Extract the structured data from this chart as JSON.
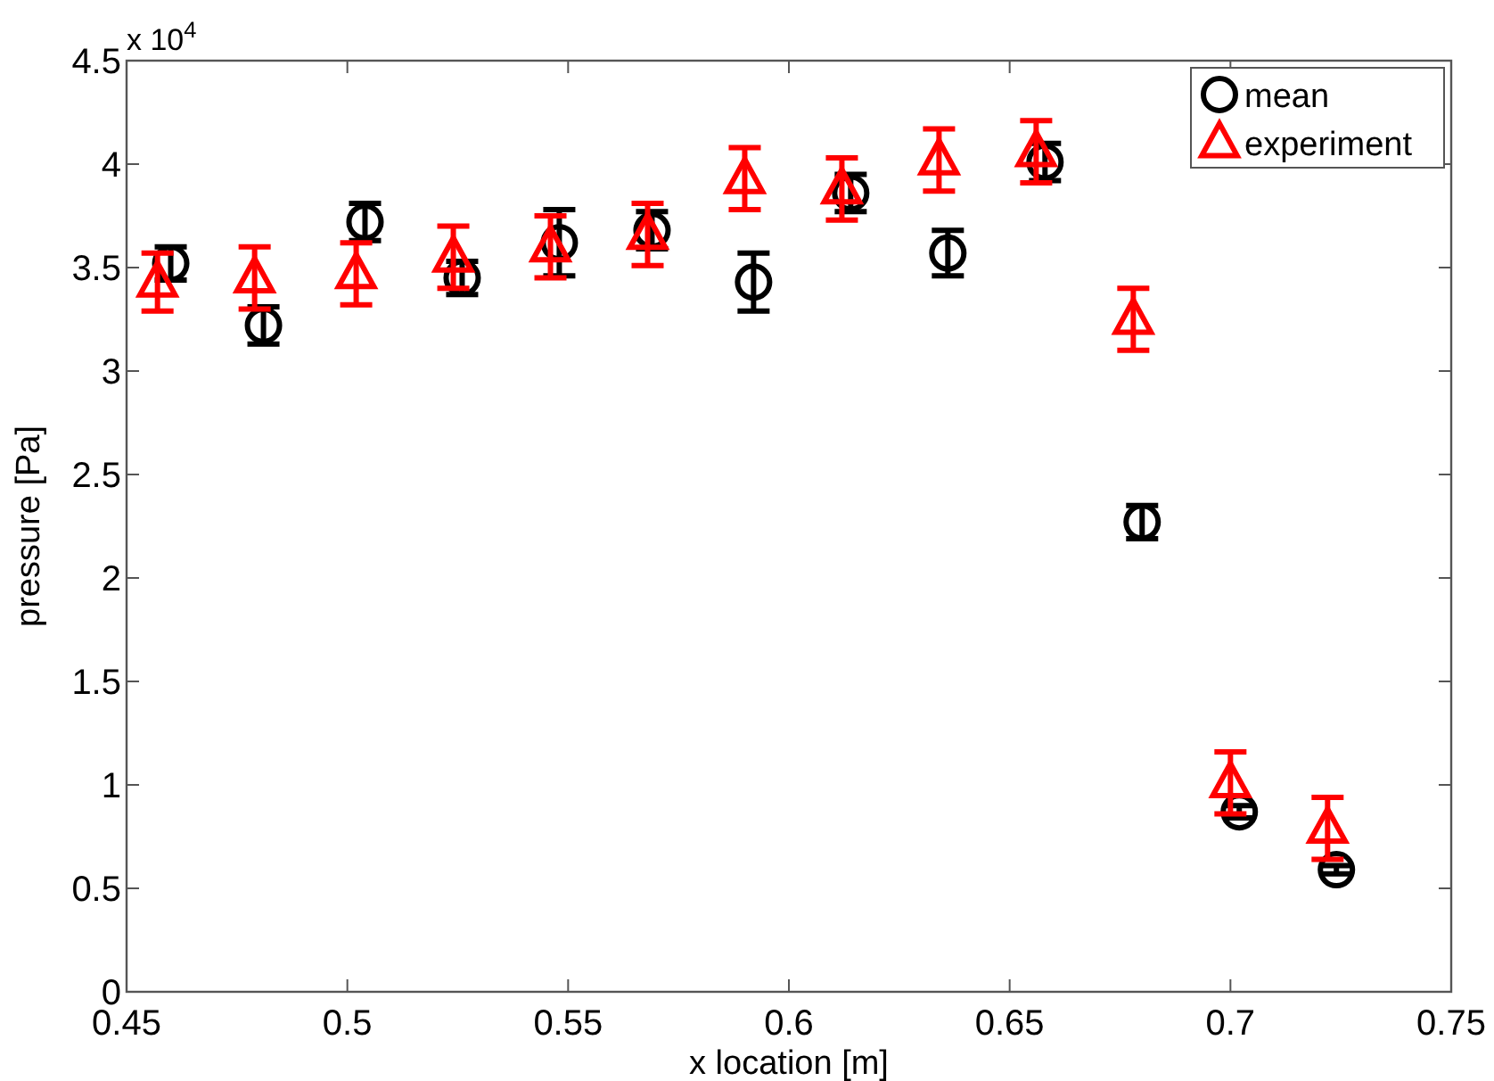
{
  "chart_data": {
    "type": "scatter",
    "xlabel": "x location [m]",
    "ylabel": "pressure [Pa]",
    "annotations": [
      "x 10$^{4}$"
    ],
    "xlim": [
      0.45,
      0.75
    ],
    "xticks": [
      0.45,
      0.5,
      0.55,
      0.6,
      0.65,
      0.7,
      0.75
    ],
    "ylim": [
      0,
      4.5
    ],
    "yticks": [
      0,
      0.5,
      1,
      1.5,
      2,
      2.5,
      3,
      3.5,
      4,
      4.5
    ],
    "grid": false,
    "legend": "top right",
    "series": [
      {
        "name": "mean",
        "color": "#000000",
        "marker": "circle",
        "x": [
          0.46,
          0.481,
          0.504,
          0.526,
          0.548,
          0.569,
          0.592,
          0.614,
          0.636,
          0.658,
          0.68,
          0.702,
          0.724
        ],
        "values": [
          3.52,
          3.22,
          3.72,
          3.45,
          3.62,
          3.68,
          3.43,
          3.86,
          3.57,
          4.01,
          2.27,
          0.87,
          0.59
        ],
        "errors": [
          0.08,
          0.09,
          0.09,
          0.08,
          0.16,
          0.09,
          0.14,
          0.09,
          0.11,
          0.09,
          0.08,
          0.03,
          0.02
        ]
      },
      {
        "name": "experiment",
        "color": "#ff0000",
        "marker": "triangle",
        "x": [
          0.457,
          0.479,
          0.502,
          0.524,
          0.546,
          0.568,
          0.59,
          0.612,
          0.634,
          0.656,
          0.678,
          0.7,
          0.722
        ],
        "values": [
          3.43,
          3.45,
          3.47,
          3.55,
          3.6,
          3.66,
          3.93,
          3.88,
          4.02,
          4.06,
          3.25,
          1.01,
          0.79
        ],
        "errors": [
          0.14,
          0.15,
          0.15,
          0.15,
          0.15,
          0.15,
          0.15,
          0.15,
          0.15,
          0.15,
          0.15,
          0.15,
          0.15
        ]
      }
    ]
  }
}
